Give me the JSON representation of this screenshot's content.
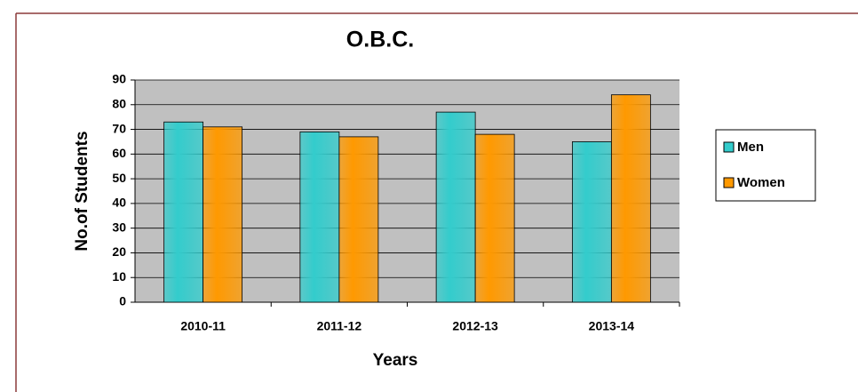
{
  "chart_data": {
    "type": "bar",
    "title": "O.B.C.",
    "x_label": "Years",
    "y_label": "No.of Students",
    "categories": [
      "2010-11",
      "2011-12",
      "2012-13",
      "2013-14"
    ],
    "series": [
      {
        "name": "Men",
        "color": "#33cccc",
        "values": [
          73,
          69,
          77,
          65
        ]
      },
      {
        "name": "Women",
        "color": "#ff9900",
        "values": [
          71,
          67,
          68,
          84
        ]
      }
    ],
    "ylim": [
      0,
      90
    ],
    "yticks": [
      0,
      10,
      20,
      30,
      40,
      50,
      60,
      70,
      80,
      90
    ],
    "grid": true,
    "legend": "right"
  }
}
